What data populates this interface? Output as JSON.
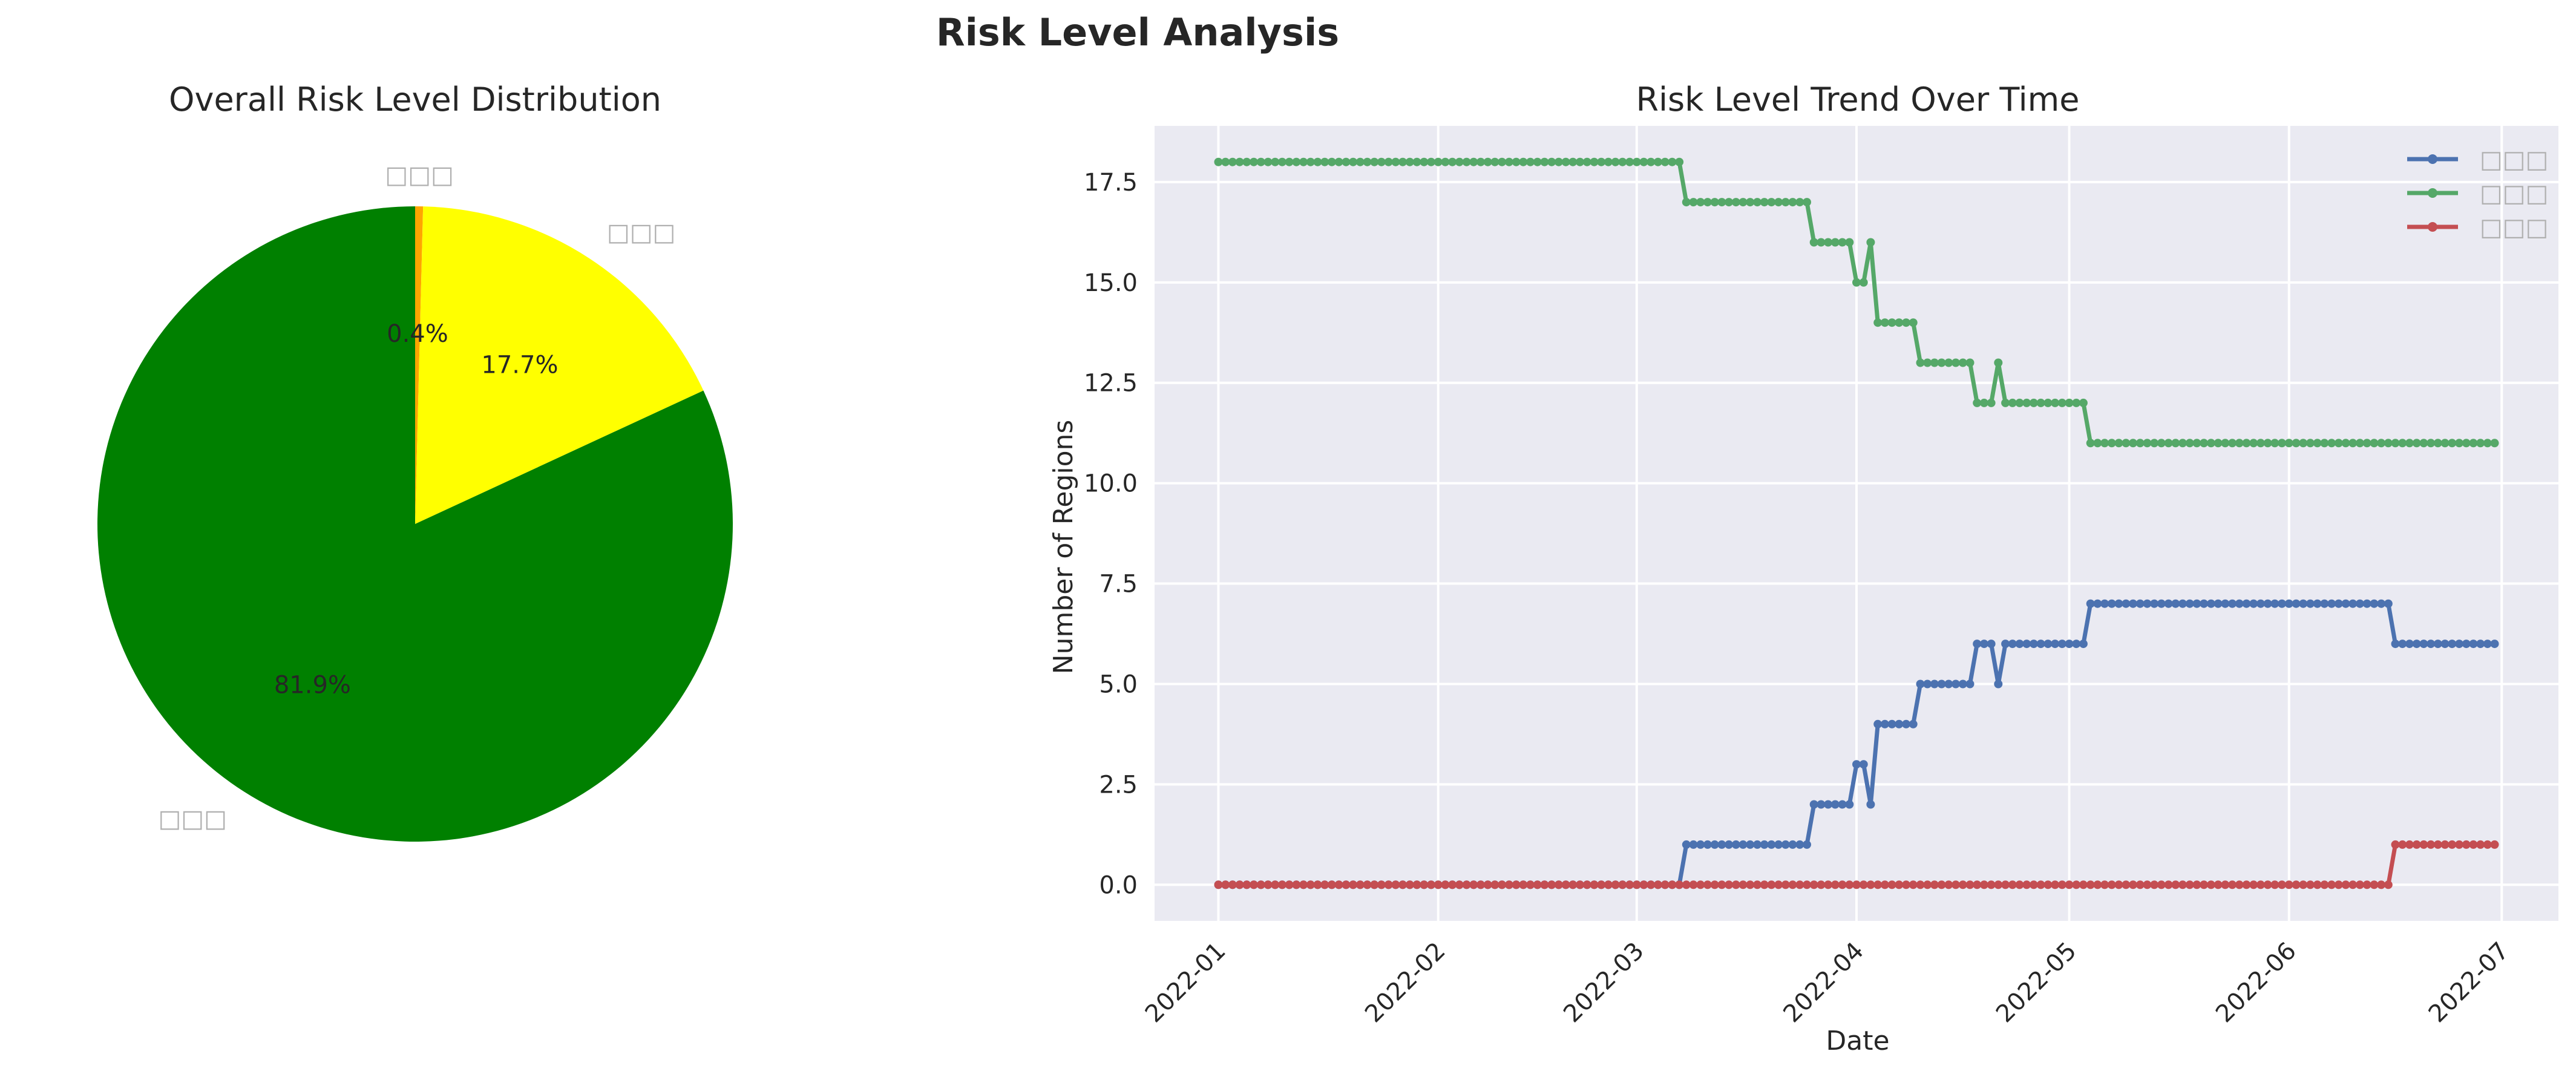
{
  "figure_title": "Risk Level Analysis",
  "colors": {
    "pie_low": "#008000",
    "pie_medium": "#ffff00",
    "pie_high": "#ffa500",
    "line_medium": "#4c72b0",
    "line_low": "#55a868",
    "line_high": "#c44e52",
    "plot_bg": "#eaeaf2",
    "grid": "#ffffff",
    "missing_glyph_label": "#b0b0b0"
  },
  "chart_data": [
    {
      "type": "pie",
      "title": "Overall Risk Level Distribution",
      "start_angle_deg": 90,
      "counterclock": false,
      "slices": [
        {
          "label": "□□□",
          "value": 0.4,
          "pct_label": "0.4%",
          "color": "#ffa500"
        },
        {
          "label": "□□□",
          "value": 17.7,
          "pct_label": "17.7%",
          "color": "#ffff00"
        },
        {
          "label": "□□□",
          "value": 81.9,
          "pct_label": "81.9%",
          "color": "#008000"
        }
      ]
    },
    {
      "type": "line",
      "title": "Risk Level Trend Over Time",
      "xlabel": "Date",
      "ylabel": "Number of Regions",
      "x_type": "date",
      "x_start": "2022-01-01",
      "x_end": "2022-06-30",
      "xlim": [
        "2021-12-23",
        "2022-07-09"
      ],
      "ylim": [
        -0.9,
        18.9
      ],
      "xticks": [
        "2022-01",
        "2022-02",
        "2022-03",
        "2022-04",
        "2022-05",
        "2022-06",
        "2022-07"
      ],
      "yticks": [
        "0.0",
        "2.5",
        "5.0",
        "7.5",
        "10.0",
        "12.5",
        "15.0",
        "17.5"
      ],
      "ytick_values": [
        0,
        2.5,
        5,
        7.5,
        10,
        12.5,
        15,
        17.5
      ],
      "grid": true,
      "legend_position": "upper right",
      "series": [
        {
          "name": "□□□",
          "color": "#4c72b0",
          "segments": [
            {
              "from": "2022-01-01",
              "to": "2022-03-07",
              "value": 0
            },
            {
              "from": "2022-03-08",
              "to": "2022-03-25",
              "value": 1
            },
            {
              "from": "2022-03-26",
              "to": "2022-03-31",
              "value": 2
            },
            {
              "from": "2022-04-01",
              "to": "2022-04-02",
              "value": 3
            },
            {
              "from": "2022-04-03",
              "to": "2022-04-03",
              "value": 2
            },
            {
              "from": "2022-04-04",
              "to": "2022-04-09",
              "value": 4
            },
            {
              "from": "2022-04-10",
              "to": "2022-04-17",
              "value": 5
            },
            {
              "from": "2022-04-18",
              "to": "2022-04-20",
              "value": 6
            },
            {
              "from": "2022-04-21",
              "to": "2022-04-21",
              "value": 5
            },
            {
              "from": "2022-04-22",
              "to": "2022-05-03",
              "value": 6
            },
            {
              "from": "2022-05-04",
              "to": "2022-06-15",
              "value": 7
            },
            {
              "from": "2022-06-16",
              "to": "2022-06-30",
              "value": 6
            }
          ]
        },
        {
          "name": "□□□",
          "color": "#55a868",
          "segments": [
            {
              "from": "2022-01-01",
              "to": "2022-03-07",
              "value": 18
            },
            {
              "from": "2022-03-08",
              "to": "2022-03-25",
              "value": 17
            },
            {
              "from": "2022-03-26",
              "to": "2022-03-31",
              "value": 16
            },
            {
              "from": "2022-04-01",
              "to": "2022-04-02",
              "value": 15
            },
            {
              "from": "2022-04-03",
              "to": "2022-04-03",
              "value": 16
            },
            {
              "from": "2022-04-04",
              "to": "2022-04-09",
              "value": 14
            },
            {
              "from": "2022-04-10",
              "to": "2022-04-17",
              "value": 13
            },
            {
              "from": "2022-04-18",
              "to": "2022-04-20",
              "value": 12
            },
            {
              "from": "2022-04-21",
              "to": "2022-04-21",
              "value": 13
            },
            {
              "from": "2022-04-22",
              "to": "2022-05-03",
              "value": 12
            },
            {
              "from": "2022-05-04",
              "to": "2022-06-30",
              "value": 11
            }
          ]
        },
        {
          "name": "□□□",
          "color": "#c44e52",
          "segments": [
            {
              "from": "2022-01-01",
              "to": "2022-06-15",
              "value": 0
            },
            {
              "from": "2022-06-16",
              "to": "2022-06-30",
              "value": 1
            }
          ]
        }
      ]
    }
  ]
}
